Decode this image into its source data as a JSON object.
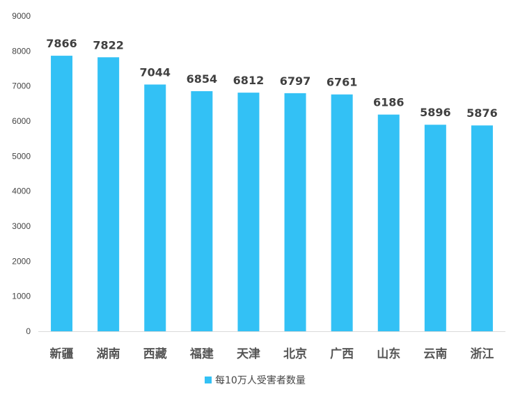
{
  "chart_data": {
    "type": "bar",
    "categories": [
      "新疆",
      "湖南",
      "西藏",
      "福建",
      "天津",
      "北京",
      "广西",
      "山东",
      "云南",
      "浙江"
    ],
    "series": [
      {
        "name": "每10万人受害者数量",
        "values": [
          7866,
          7822,
          7044,
          6854,
          6812,
          6797,
          6761,
          6186,
          5896,
          5876
        ],
        "color": "#33c1f5"
      }
    ],
    "y_ticks": [
      "0",
      "1000",
      "2000",
      "3000",
      "4000",
      "5000",
      "6000",
      "7000",
      "8000",
      "9000"
    ],
    "ylim": [
      0,
      9000
    ],
    "grid": false,
    "legend_position": "bottom-center",
    "data_labels": true,
    "title": "",
    "xlabel": "",
    "ylabel": ""
  }
}
